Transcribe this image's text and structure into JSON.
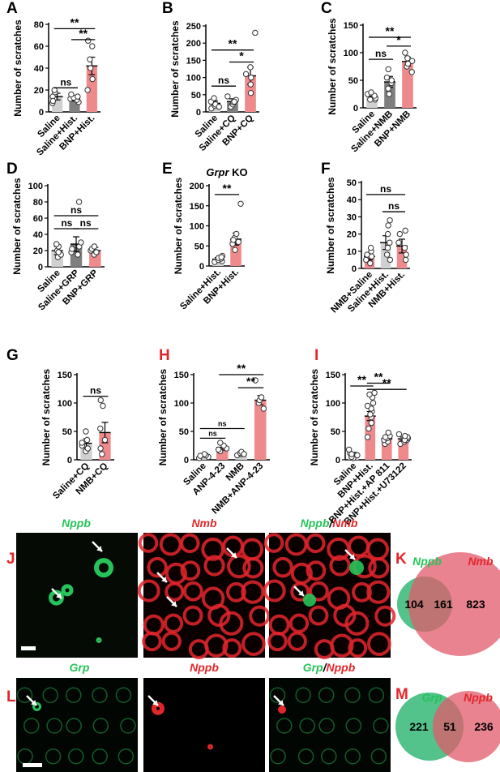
{
  "colors": {
    "grey": "#d0d0d0",
    "dark": "#7f7f7f",
    "pink": "#ef8a8c",
    "green": "#27c35a",
    "red": "#e3262b",
    "panel_red": "#e3262b"
  },
  "chart_data": [
    {
      "type": "bar",
      "panel": "A",
      "ylabel": "Number of scratches",
      "ylim": [
        0,
        80
      ],
      "ticks": [
        0,
        20,
        40,
        60,
        80
      ],
      "categories": [
        "Saline",
        "Saline+Hist.",
        "BNP+Hist."
      ],
      "values": [
        14,
        12,
        42
      ],
      "sem": [
        3,
        2,
        8
      ],
      "colors": [
        "grey",
        "dark",
        "pink"
      ],
      "points": [
        [
          8,
          12,
          14,
          18,
          20,
          10
        ],
        [
          9,
          11,
          12,
          13,
          14,
          16
        ],
        [
          20,
          30,
          40,
          48,
          60,
          65
        ]
      ],
      "brackets": [
        {
          "from": 0,
          "to": 2,
          "y": 76,
          "label": "**"
        },
        {
          "from": 1,
          "to": 2,
          "y": 66,
          "label": "**"
        },
        {
          "from": 0,
          "to": 1,
          "y": 22,
          "label": "ns"
        }
      ]
    },
    {
      "type": "bar",
      "panel": "B",
      "ylabel": "Number of scratches",
      "ylim": [
        0,
        250
      ],
      "ticks": [
        0,
        50,
        100,
        150,
        200,
        250
      ],
      "categories": [
        "Saline",
        "Saline+CQ",
        "BNP+CQ"
      ],
      "values": [
        25,
        30,
        105
      ],
      "sem": [
        7,
        8,
        25
      ],
      "colors": [
        "grey",
        "dark",
        "pink"
      ],
      "points": [
        [
          10,
          18,
          22,
          30,
          40,
          15
        ],
        [
          15,
          22,
          28,
          35,
          45,
          30
        ],
        [
          55,
          80,
          100,
          110,
          130,
          230
        ]
      ],
      "brackets": [
        {
          "from": 0,
          "to": 2,
          "y": 180,
          "label": "**"
        },
        {
          "from": 1,
          "to": 2,
          "y": 145,
          "label": "*"
        },
        {
          "from": 0,
          "to": 1,
          "y": 75,
          "label": "ns"
        }
      ]
    },
    {
      "type": "bar",
      "panel": "C",
      "ylabel": "Number of scratches",
      "ylim": [
        0,
        150
      ],
      "ticks": [
        0,
        50,
        100,
        150
      ],
      "categories": [
        "Saline",
        "Saline+NMB",
        "BNP+NMB"
      ],
      "values": [
        21,
        47,
        84
      ],
      "sem": [
        4,
        10,
        8
      ],
      "colors": [
        "grey",
        "dark",
        "pink"
      ],
      "points": [
        [
          15,
          18,
          22,
          25,
          28,
          15
        ],
        [
          25,
          35,
          45,
          55,
          70,
          50
        ],
        [
          65,
          75,
          85,
          90,
          100,
          80
        ]
      ],
      "brackets": [
        {
          "from": 0,
          "to": 2,
          "y": 128,
          "label": "**"
        },
        {
          "from": 1,
          "to": 2,
          "y": 112,
          "label": "*"
        },
        {
          "from": 0,
          "to": 1,
          "y": 88,
          "label": "ns"
        }
      ]
    },
    {
      "type": "bar",
      "panel": "D",
      "ylabel": "Number of scratches",
      "ylim": [
        0,
        100
      ],
      "ticks": [
        0,
        20,
        40,
        60,
        80,
        100
      ],
      "categories": [
        "Saline",
        "Saline+GRP",
        "BNP+GRP"
      ],
      "values": [
        20,
        28,
        20
      ],
      "sem": [
        5,
        9,
        4
      ],
      "colors": [
        "grey",
        "dark",
        "pink"
      ],
      "points": [
        [
          12,
          15,
          20,
          25,
          28,
          18
        ],
        [
          15,
          18,
          22,
          25,
          30,
          80
        ],
        [
          15,
          18,
          20,
          22,
          25,
          18
        ]
      ],
      "brackets": [
        {
          "from": 0,
          "to": 2,
          "y": 63,
          "label": "ns"
        },
        {
          "from": 0,
          "to": 1,
          "y": 47,
          "label": "ns"
        },
        {
          "from": 1,
          "to": 2,
          "y": 47,
          "label": "ns"
        }
      ]
    },
    {
      "type": "bar",
      "panel": "E",
      "title": "Grpr KO",
      "ylabel": "Number of scratches",
      "ylim": [
        0,
        200
      ],
      "ticks": [
        0,
        50,
        100,
        150,
        200
      ],
      "categories": [
        "Saline+Hist.",
        "BNP+Hist."
      ],
      "values": [
        17,
        67
      ],
      "sem": [
        4,
        15
      ],
      "colors": [
        "grey",
        "pink"
      ],
      "points": [
        [
          10,
          12,
          15,
          18,
          20,
          25,
          22
        ],
        [
          40,
          55,
          60,
          70,
          80,
          155,
          65
        ]
      ],
      "brackets": [
        {
          "from": 0,
          "to": 1,
          "y": 178,
          "label": "**"
        }
      ]
    },
    {
      "type": "bar",
      "panel": "F",
      "ylabel": "Number of scratches",
      "ylim": [
        0,
        50
      ],
      "ticks": [
        0,
        10,
        20,
        30,
        40,
        50
      ],
      "categories": [
        "NMB+Saline",
        "Saline+Hist.",
        "NMB+Hist."
      ],
      "values": [
        7,
        15,
        13
      ],
      "sem": [
        2,
        4,
        4
      ],
      "colors": [
        "pink",
        "grey",
        "pink"
      ],
      "points": [
        [
          3,
          5,
          7,
          10,
          12,
          8
        ],
        [
          5,
          8,
          12,
          15,
          20,
          25,
          28
        ],
        [
          5,
          8,
          12,
          15,
          20,
          22
        ]
      ],
      "brackets": [
        {
          "from": 0,
          "to": 2,
          "y": 43,
          "label": "ns"
        },
        {
          "from": 1,
          "to": 2,
          "y": 33,
          "label": "ns"
        }
      ]
    },
    {
      "type": "bar",
      "panel": "G",
      "ylabel": "Number of scratches",
      "ylim": [
        0,
        150
      ],
      "ticks": [
        0,
        50,
        100,
        150
      ],
      "categories": [
        "Saline+CQ",
        "NMB+CQ"
      ],
      "values": [
        29,
        48
      ],
      "sem": [
        8,
        18
      ],
      "colors": [
        "grey",
        "pink"
      ],
      "points": [
        [
          15,
          20,
          25,
          30,
          35,
          50
        ],
        [
          10,
          20,
          35,
          55,
          95,
          105
        ]
      ],
      "brackets": [
        {
          "from": 0,
          "to": 1,
          "y": 112,
          "label": "ns"
        }
      ]
    },
    {
      "type": "bar",
      "panel": "H",
      "ylabel": "Number of scratches",
      "ylim": [
        0,
        150
      ],
      "ticks": [
        0,
        50,
        100,
        150
      ],
      "categories": [
        "Saline",
        "ANP-4-23",
        "NMB",
        "NMB+ANP-4-23"
      ],
      "values": [
        7,
        22,
        11,
        105
      ],
      "sem": [
        2,
        5,
        2,
        8
      ],
      "colors": [
        "grey",
        "pink",
        "grey",
        "pink"
      ],
      "points": [
        [
          3,
          5,
          8,
          10,
          7
        ],
        [
          15,
          20,
          25,
          30,
          18
        ],
        [
          8,
          10,
          12,
          14,
          10
        ],
        [
          90,
          100,
          105,
          110,
          140
        ]
      ],
      "brackets": [
        {
          "from": 1,
          "to": 3,
          "y": 150,
          "label": "**"
        },
        {
          "from": 2,
          "to": 3,
          "y": 127,
          "label": "**"
        },
        {
          "from": 0,
          "to": 2,
          "y": 55,
          "label": "ns"
        },
        {
          "from": 0,
          "to": 1,
          "y": 38,
          "label": "ns"
        }
      ]
    },
    {
      "type": "bar",
      "panel": "I",
      "ylabel": "Number of scratches",
      "ylim": [
        0,
        150
      ],
      "ticks": [
        0,
        50,
        100,
        150
      ],
      "categories": [
        "Saline",
        "BNP+Hist.",
        "BNP+Hist.+AP 811",
        "BNP+Hist.+U73122"
      ],
      "values": [
        10,
        77,
        37,
        37
      ],
      "sem": [
        3,
        8,
        4,
        3
      ],
      "colors": [
        "grey",
        "pink",
        "pink",
        "pink"
      ],
      "points": [
        [
          3,
          5,
          8,
          12,
          18,
          10
        ],
        [
          40,
          55,
          65,
          75,
          85,
          90,
          95,
          110,
          115,
          118,
          100,
          80
        ],
        [
          28,
          32,
          35,
          38,
          42,
          48,
          40
        ],
        [
          28,
          32,
          35,
          38,
          40,
          45,
          35,
          42
        ]
      ],
      "brackets": [
        {
          "from": 0,
          "to": 1,
          "y": 130,
          "label": "**"
        },
        {
          "from": 1,
          "to": 2,
          "y": 135,
          "label": "**"
        },
        {
          "from": 1,
          "to": 3,
          "y": 124,
          "label": "**"
        }
      ]
    }
  ],
  "panels": {
    "A": "A",
    "B": "B",
    "C": "C",
    "D": "D",
    "E": "E",
    "F": "F",
    "G": "G",
    "H": "H",
    "I": "I",
    "J": "J",
    "K": "K",
    "L": "L",
    "M": "M"
  },
  "micro": {
    "j_left": "Nppb",
    "j_mid": "Nmb",
    "j_right_a": "Nppb",
    "j_right_slash": "/",
    "j_right_b": "Nmb",
    "l_left": "Grp",
    "l_mid": "Nppb",
    "l_right_a": "Grp",
    "l_right_slash": "/",
    "l_right_b": "Nppb"
  },
  "venn": [
    {
      "panel": "K",
      "left_label": "Nppb",
      "right_label": "Nmb",
      "left_only": 104,
      "overlap": 161,
      "right_only": 823
    },
    {
      "panel": "M",
      "left_label": "Grp",
      "right_label": "Nppb",
      "left_only": 221,
      "overlap": 51,
      "right_only": 236
    }
  ]
}
